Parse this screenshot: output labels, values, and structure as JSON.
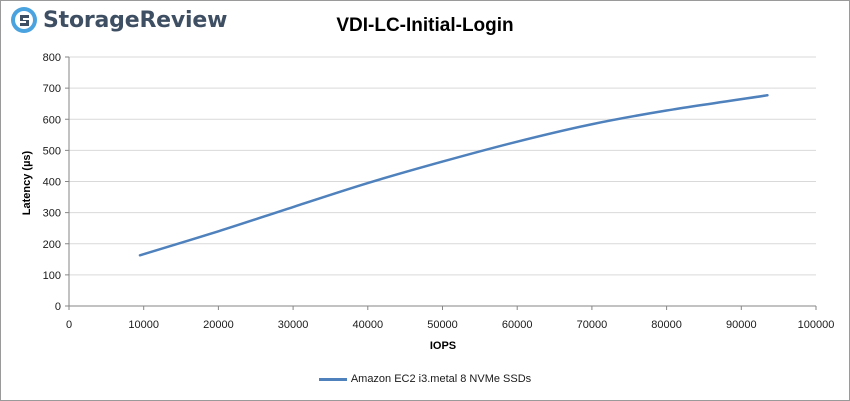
{
  "brand": {
    "name": "StorageReview",
    "logo_icon": "storagereview-logo-icon",
    "color": "#3f4f63",
    "accent": "#4aa3df"
  },
  "chart_data": {
    "type": "line",
    "title": "VDI-LC-Initial-Login",
    "xlabel": "IOPS",
    "ylabel": "Latency (µs)",
    "xlim": [
      0,
      100000
    ],
    "ylim": [
      0,
      800
    ],
    "x_ticks": [
      0,
      10000,
      20000,
      30000,
      40000,
      50000,
      60000,
      70000,
      80000,
      90000,
      100000
    ],
    "y_ticks": [
      0,
      100,
      200,
      300,
      400,
      500,
      600,
      700,
      800
    ],
    "grid": true,
    "legend_position": "bottom",
    "series": [
      {
        "name": "Amazon EC2 i3.metal 8 NVMe SSDs",
        "color": "#4f81bd",
        "x": [
          9500,
          20000,
          30000,
          40000,
          50000,
          60000,
          70000,
          80000,
          93500
        ],
        "y": [
          163,
          240,
          318,
          395,
          464,
          528,
          584,
          628,
          677
        ]
      }
    ]
  }
}
